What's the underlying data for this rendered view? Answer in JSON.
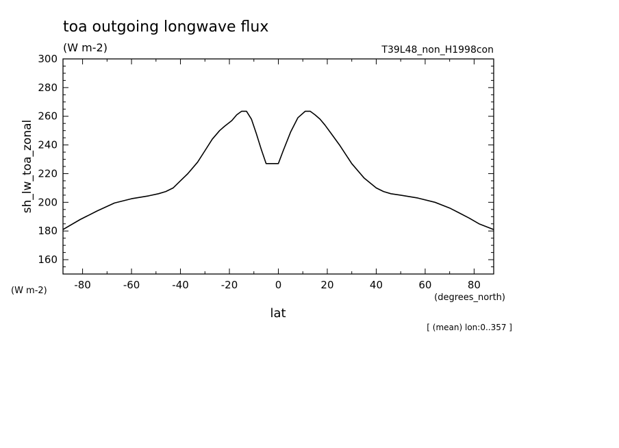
{
  "chart_data": {
    "type": "line",
    "title": "toa outgoing longwave flux",
    "units": "(W m-2)",
    "experiment": "T39L48_non_H1998con",
    "ylabel": "sh_lw_toa_zonal",
    "yunits": "(W m-2)",
    "xlabel": "lat",
    "xunits": "(degrees_north)",
    "note": "[ (mean) lon:0..357 ]",
    "xlim": [
      -88,
      88
    ],
    "ylim": [
      150,
      300
    ],
    "x_ticks": [
      -80,
      -60,
      -40,
      -20,
      0,
      20,
      40,
      60,
      80
    ],
    "y_ticks": [
      160,
      180,
      200,
      220,
      240,
      260,
      280,
      300
    ],
    "grid": false,
    "series": [
      {
        "x": [
          -88,
          -81,
          -74,
          -67,
          -60,
          -53,
          -49,
          -46,
          -43,
          -40,
          -37,
          -33,
          -30,
          -27,
          -24,
          -22,
          -19,
          -17,
          -15,
          -13,
          -11,
          -9,
          -7,
          -5,
          -3,
          0,
          2,
          5,
          8,
          11,
          13,
          15,
          17,
          19,
          22,
          25,
          30,
          35,
          40,
          43,
          46,
          50,
          57,
          64,
          70,
          74,
          78,
          82,
          88
        ],
        "y": [
          181,
          188,
          194,
          199.5,
          202.5,
          204.5,
          206,
          207.5,
          210,
          215,
          220,
          228,
          236,
          244,
          250,
          253,
          257,
          261,
          263.5,
          263.5,
          258,
          248,
          237,
          227,
          227,
          227,
          236,
          249,
          259,
          263.5,
          263.5,
          261,
          258,
          254,
          247,
          240,
          227,
          217,
          210,
          207.5,
          206,
          205,
          203,
          200,
          196,
          192.5,
          189,
          185,
          181
        ]
      }
    ]
  }
}
